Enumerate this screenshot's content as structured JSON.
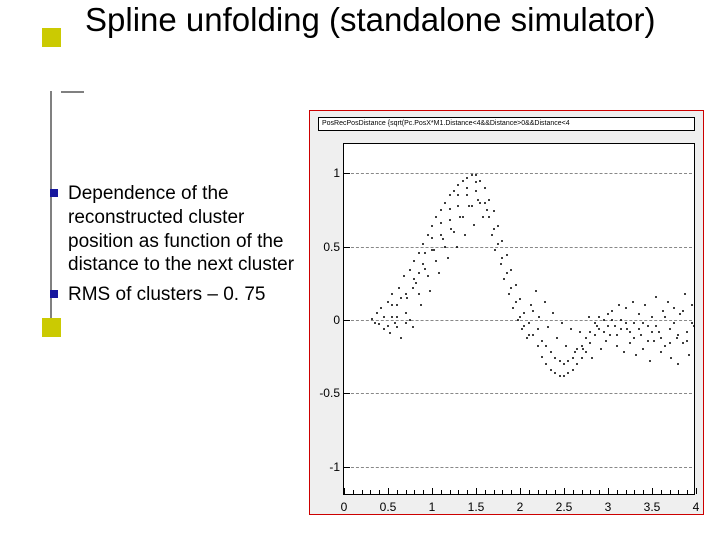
{
  "title": "Spline unfolding (standalone simulator)",
  "bullets": [
    "Dependence of the reconstructed cluster position as function of the distance to the next cluster",
    "RMS of clusters – 0. 75"
  ],
  "colors": {
    "bullet_marker": "#17179d",
    "deco": "#cbca02",
    "chart_border": "#cc0000",
    "chart_bg": "#efefef",
    "plot_bg": "#ffffff",
    "text": "#000000",
    "grid": "#888888"
  },
  "chart": {
    "type": "scatter",
    "title": "PosRecPosDistance {sqrt(Pc.PosX*M1.Distance<4&&Distance>0&&Distance<4",
    "xlim": [
      0,
      4
    ],
    "ylim": [
      -1.2,
      1.2
    ],
    "xticks": [
      0,
      0.5,
      1,
      1.5,
      2,
      2.5,
      3,
      3.5,
      4
    ],
    "yticks": [
      -1,
      -0.5,
      0,
      0.5,
      1
    ],
    "xtick_labels": [
      "0",
      "0.5",
      "1",
      "1.5",
      "2",
      "2.5",
      "3",
      "3.5",
      "4"
    ],
    "ytick_labels": [
      "-1",
      "-0.5",
      "0",
      "0.5",
      "1"
    ],
    "grid_y": [
      -1,
      -0.5,
      0,
      0.5,
      1
    ],
    "marker_size": 2,
    "marker_color": "#000000",
    "points": [
      [
        0.32,
        0.01
      ],
      [
        0.35,
        -0.02
      ],
      [
        0.38,
        0.05
      ],
      [
        0.4,
        -0.03
      ],
      [
        0.42,
        0.08
      ],
      [
        0.45,
        -0.06
      ],
      [
        0.5,
        0.12
      ],
      [
        0.52,
        -0.09
      ],
      [
        0.55,
        0.18
      ],
      [
        0.58,
        -0.02
      ],
      [
        0.6,
        0.1
      ],
      [
        0.62,
        0.22
      ],
      [
        0.65,
        -0.12
      ],
      [
        0.68,
        0.3
      ],
      [
        0.7,
        0.05
      ],
      [
        0.72,
        0.15
      ],
      [
        0.75,
        0.34
      ],
      [
        0.78,
        -0.05
      ],
      [
        0.8,
        0.4
      ],
      [
        0.82,
        0.25
      ],
      [
        0.85,
        0.46
      ],
      [
        0.88,
        0.1
      ],
      [
        0.9,
        0.52
      ],
      [
        0.92,
        0.35
      ],
      [
        0.95,
        0.58
      ],
      [
        0.98,
        0.2
      ],
      [
        1.0,
        0.64
      ],
      [
        1.02,
        0.48
      ],
      [
        1.05,
        0.7
      ],
      [
        1.08,
        0.32
      ],
      [
        1.1,
        0.75
      ],
      [
        1.12,
        0.55
      ],
      [
        1.15,
        0.8
      ],
      [
        1.18,
        0.42
      ],
      [
        1.2,
        0.85
      ],
      [
        1.22,
        0.62
      ],
      [
        1.25,
        0.88
      ],
      [
        1.28,
        0.5
      ],
      [
        1.3,
        0.92
      ],
      [
        1.32,
        0.7
      ],
      [
        1.35,
        0.95
      ],
      [
        1.38,
        0.58
      ],
      [
        1.4,
        0.97
      ],
      [
        1.42,
        0.78
      ],
      [
        1.45,
        0.99
      ],
      [
        1.48,
        0.65
      ],
      [
        1.5,
        0.99
      ],
      [
        1.52,
        0.82
      ],
      [
        1.55,
        0.95
      ],
      [
        1.58,
        0.7
      ],
      [
        1.6,
        0.9
      ],
      [
        1.62,
        0.75
      ],
      [
        1.65,
        0.82
      ],
      [
        1.68,
        0.58
      ],
      [
        1.7,
        0.74
      ],
      [
        1.72,
        0.48
      ],
      [
        1.75,
        0.64
      ],
      [
        1.78,
        0.38
      ],
      [
        1.8,
        0.54
      ],
      [
        1.82,
        0.28
      ],
      [
        1.85,
        0.44
      ],
      [
        1.88,
        0.18
      ],
      [
        1.9,
        0.34
      ],
      [
        1.92,
        0.08
      ],
      [
        1.95,
        0.24
      ],
      [
        1.98,
        0.0
      ],
      [
        2.0,
        0.14
      ],
      [
        2.02,
        -0.06
      ],
      [
        2.05,
        0.05
      ],
      [
        2.08,
        -0.12
      ],
      [
        2.1,
        -0.02
      ],
      [
        2.12,
        0.1
      ],
      [
        2.15,
        -0.1
      ],
      [
        2.18,
        0.2
      ],
      [
        2.2,
        -0.18
      ],
      [
        2.22,
        0.02
      ],
      [
        2.25,
        -0.25
      ],
      [
        2.28,
        0.12
      ],
      [
        2.3,
        -0.3
      ],
      [
        2.32,
        -0.05
      ],
      [
        2.35,
        -0.34
      ],
      [
        2.38,
        0.05
      ],
      [
        2.4,
        -0.36
      ],
      [
        2.42,
        -0.12
      ],
      [
        2.45,
        -0.38
      ],
      [
        2.48,
        -0.02
      ],
      [
        2.5,
        -0.38
      ],
      [
        2.52,
        -0.18
      ],
      [
        2.55,
        -0.36
      ],
      [
        2.58,
        -0.06
      ],
      [
        2.6,
        -0.34
      ],
      [
        2.62,
        -0.22
      ],
      [
        2.65,
        -0.3
      ],
      [
        2.68,
        -0.08
      ],
      [
        2.7,
        -0.26
      ],
      [
        2.72,
        -0.2
      ],
      [
        2.75,
        -0.22
      ],
      [
        2.78,
        0.02
      ],
      [
        2.8,
        -0.16
      ],
      [
        2.82,
        -0.26
      ],
      [
        2.85,
        -0.1
      ],
      [
        2.88,
        -0.04
      ],
      [
        2.9,
        -0.06
      ],
      [
        2.92,
        -0.2
      ],
      [
        2.95,
        0.0
      ],
      [
        2.98,
        -0.14
      ],
      [
        3.0,
        0.04
      ],
      [
        3.02,
        -0.1
      ],
      [
        3.05,
        0.06
      ],
      [
        3.08,
        -0.04
      ],
      [
        3.1,
        -0.18
      ],
      [
        3.12,
        0.1
      ],
      [
        3.15,
        0.0
      ],
      [
        3.18,
        -0.22
      ],
      [
        3.2,
        0.08
      ],
      [
        3.22,
        -0.06
      ],
      [
        3.25,
        -0.16
      ],
      [
        3.28,
        0.12
      ],
      [
        3.3,
        -0.02
      ],
      [
        3.32,
        -0.24
      ],
      [
        3.35,
        0.04
      ],
      [
        3.38,
        -0.1
      ],
      [
        3.4,
        -0.2
      ],
      [
        3.42,
        0.1
      ],
      [
        3.45,
        -0.04
      ],
      [
        3.48,
        -0.28
      ],
      [
        3.5,
        0.02
      ],
      [
        3.52,
        -0.14
      ],
      [
        3.55,
        0.16
      ],
      [
        3.58,
        -0.08
      ],
      [
        3.6,
        -0.22
      ],
      [
        3.62,
        0.06
      ],
      [
        3.65,
        -0.18
      ],
      [
        3.68,
        0.12
      ],
      [
        3.7,
        -0.06
      ],
      [
        3.72,
        -0.26
      ],
      [
        3.75,
        0.08
      ],
      [
        3.78,
        -0.12
      ],
      [
        3.8,
        -0.3
      ],
      [
        3.82,
        0.04
      ],
      [
        3.85,
        -0.16
      ],
      [
        3.88,
        0.18
      ],
      [
        3.9,
        -0.08
      ],
      [
        3.92,
        -0.24
      ],
      [
        3.95,
        0.1
      ],
      [
        3.98,
        -0.04
      ],
      [
        0.55,
        0.02
      ],
      [
        0.6,
        -0.05
      ],
      [
        0.7,
        0.18
      ],
      [
        0.75,
        0.0
      ],
      [
        0.8,
        0.28
      ],
      [
        0.85,
        0.18
      ],
      [
        0.9,
        0.38
      ],
      [
        0.95,
        0.3
      ],
      [
        1.0,
        0.48
      ],
      [
        1.05,
        0.4
      ],
      [
        1.1,
        0.58
      ],
      [
        1.15,
        0.5
      ],
      [
        1.2,
        0.68
      ],
      [
        1.25,
        0.6
      ],
      [
        1.3,
        0.78
      ],
      [
        1.35,
        0.7
      ],
      [
        1.4,
        0.85
      ],
      [
        1.45,
        0.78
      ],
      [
        1.5,
        0.88
      ],
      [
        1.55,
        0.8
      ],
      [
        1.6,
        0.8
      ],
      [
        1.65,
        0.7
      ],
      [
        1.7,
        0.62
      ],
      [
        1.75,
        0.52
      ],
      [
        1.8,
        0.42
      ],
      [
        1.85,
        0.32
      ],
      [
        1.9,
        0.22
      ],
      [
        1.95,
        0.12
      ],
      [
        2.0,
        0.02
      ],
      [
        2.05,
        -0.04
      ],
      [
        2.1,
        -0.1
      ],
      [
        2.15,
        0.06
      ],
      [
        2.2,
        -0.06
      ],
      [
        2.25,
        -0.14
      ],
      [
        2.3,
        -0.18
      ],
      [
        2.35,
        -0.22
      ],
      [
        2.4,
        -0.26
      ],
      [
        2.45,
        -0.28
      ],
      [
        2.5,
        -0.3
      ],
      [
        2.55,
        -0.28
      ],
      [
        2.6,
        -0.26
      ],
      [
        2.65,
        -0.2
      ],
      [
        2.7,
        -0.18
      ],
      [
        2.75,
        -0.12
      ],
      [
        2.8,
        -0.08
      ],
      [
        2.85,
        -0.02
      ],
      [
        2.9,
        0.02
      ],
      [
        2.95,
        -0.08
      ],
      [
        3.0,
        -0.04
      ],
      [
        3.05,
        0.0
      ],
      [
        3.1,
        -0.1
      ],
      [
        3.15,
        -0.06
      ],
      [
        3.2,
        -0.02
      ],
      [
        3.25,
        -0.08
      ],
      [
        3.3,
        -0.12
      ],
      [
        3.35,
        -0.06
      ],
      [
        3.4,
        -0.02
      ],
      [
        3.45,
        -0.14
      ],
      [
        3.5,
        -0.08
      ],
      [
        3.55,
        -0.04
      ],
      [
        3.6,
        -0.12
      ],
      [
        3.65,
        0.02
      ],
      [
        3.7,
        -0.16
      ],
      [
        3.75,
        -0.02
      ],
      [
        3.8,
        -0.1
      ],
      [
        3.85,
        0.06
      ],
      [
        3.9,
        -0.14
      ],
      [
        3.95,
        -0.02
      ],
      [
        0.45,
        0.02
      ],
      [
        0.5,
        -0.04
      ],
      [
        0.55,
        0.1
      ],
      [
        0.6,
        0.02
      ],
      [
        0.65,
        0.15
      ],
      [
        0.7,
        -0.02
      ],
      [
        0.78,
        0.22
      ],
      [
        0.85,
        0.32
      ],
      [
        0.92,
        0.46
      ],
      [
        1.0,
        0.56
      ],
      [
        1.1,
        0.66
      ],
      [
        1.2,
        0.76
      ],
      [
        1.3,
        0.85
      ],
      [
        1.4,
        0.9
      ],
      [
        1.5,
        0.94
      ]
    ]
  }
}
